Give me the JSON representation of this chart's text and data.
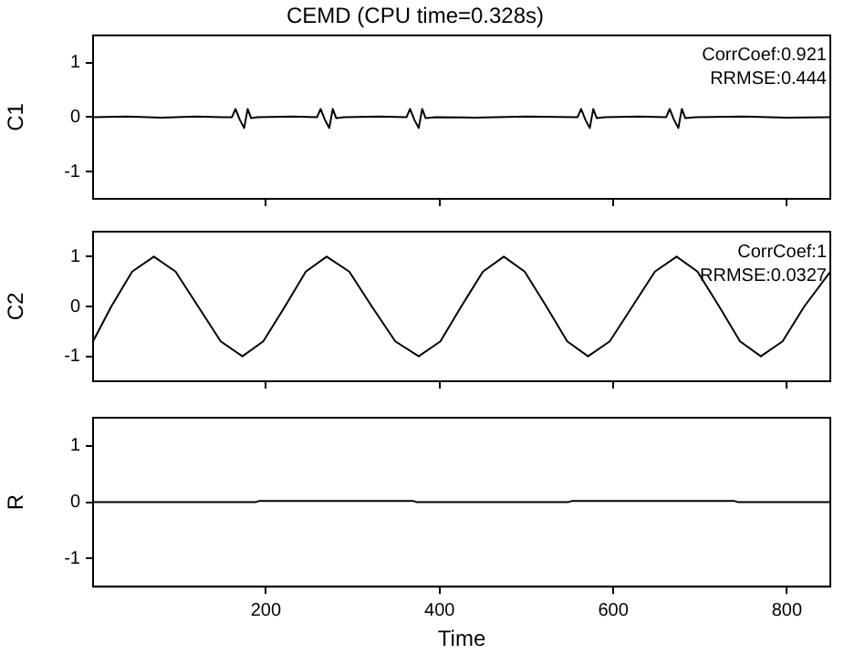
{
  "chart_data": [
    {
      "type": "line",
      "title": "CEMD (CPU time=0.328s)",
      "ylabel": "C1",
      "annotations": [
        "CorrCoef:0.921",
        "RRMSE:0.444"
      ],
      "xlim": [
        1,
        850
      ],
      "xticks": [
        200,
        400,
        600,
        800
      ],
      "ylim": [
        -1.5,
        1.5
      ],
      "yticks": [
        -1,
        0,
        1
      ],
      "tick_labels": "y",
      "grid": false,
      "series": [
        {
          "color": "#000000",
          "x": [
            1,
            40,
            80,
            120,
            150,
            161,
            165,
            170,
            175,
            179,
            183,
            190,
            230,
            259,
            263,
            268,
            273,
            277,
            281,
            290,
            330,
            362,
            366,
            371,
            376,
            380,
            384,
            395,
            440,
            500,
            559,
            563,
            568,
            573,
            577,
            581,
            590,
            630,
            661,
            665,
            670,
            675,
            679,
            683,
            695,
            750,
            800,
            850
          ],
          "values": [
            0,
            0.01,
            -0.01,
            0.01,
            0,
            0,
            0.15,
            -0.05,
            -0.2,
            0.15,
            -0.02,
            0,
            0.01,
            0,
            0.15,
            -0.05,
            -0.2,
            0.15,
            -0.02,
            0,
            0.01,
            0,
            0.15,
            -0.05,
            -0.2,
            0.15,
            -0.02,
            0,
            -0.01,
            0.01,
            0,
            0.15,
            -0.05,
            -0.2,
            0.15,
            -0.02,
            0,
            0.01,
            0,
            0.15,
            -0.05,
            -0.2,
            0.15,
            -0.02,
            0,
            0.01,
            -0.01,
            0
          ]
        }
      ]
    },
    {
      "type": "line",
      "ylabel": "C2",
      "annotations": [
        "CorrCoef:1",
        "RRMSE:0.0327"
      ],
      "xlim": [
        1,
        850
      ],
      "xticks": [
        200,
        400,
        600,
        800
      ],
      "ylim": [
        -1.5,
        1.5
      ],
      "yticks": [
        -1,
        0,
        1
      ],
      "tick_labels": "y",
      "grid": false,
      "series": [
        {
          "color": "#000000",
          "x": [
            1,
            22,
            46,
            71,
            96,
            122,
            148,
            173,
            197,
            222,
            246,
            270,
            296,
            322,
            349,
            376,
            401,
            425,
            450,
            474,
            498,
            523,
            547,
            571,
            596,
            622,
            648,
            673,
            697,
            722,
            746,
            770,
            795,
            820,
            850
          ],
          "values": [
            -0.7,
            0,
            0.7,
            1,
            0.7,
            0,
            -0.7,
            -1,
            -0.7,
            0,
            0.7,
            1,
            0.7,
            0,
            -0.7,
            -1,
            -0.7,
            0,
            0.7,
            1,
            0.7,
            0,
            -0.7,
            -1,
            -0.7,
            0,
            0.7,
            1,
            0.7,
            0,
            -0.7,
            -1,
            -0.7,
            0,
            0.7
          ]
        }
      ]
    },
    {
      "type": "line",
      "ylabel": "R",
      "xlabel": "Time",
      "xlim": [
        1,
        850
      ],
      "xticks": [
        200,
        400,
        600,
        800
      ],
      "ylim": [
        -1.5,
        1.5
      ],
      "yticks": [
        -1,
        0,
        1
      ],
      "grid": false,
      "series": [
        {
          "color": "#000000",
          "x": [
            1,
            188,
            192,
            370,
            374,
            548,
            552,
            740,
            744,
            850
          ],
          "values": [
            0,
            0,
            0.02,
            0.02,
            0,
            0,
            0.02,
            0.02,
            0,
            0
          ]
        }
      ]
    }
  ]
}
